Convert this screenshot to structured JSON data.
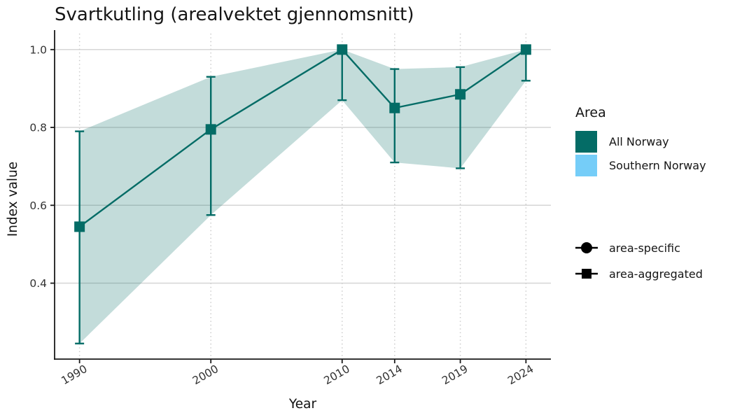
{
  "chart_data": {
    "type": "line",
    "title": "Svartkutling (arealvektet gjennomsnitt)",
    "xlabel": "Year",
    "ylabel": "Index value",
    "x": [
      1990,
      2000,
      2010,
      2014,
      2019,
      2024
    ],
    "xtick_labels": [
      "1990",
      "2000",
      "2010",
      "2014",
      "2019",
      "2024"
    ],
    "yticks": [
      0.4,
      0.6,
      0.8,
      1.0
    ],
    "ytick_labels": [
      "0.4",
      "0.6",
      "0.8",
      "1.0"
    ],
    "xlim": [
      1988.1,
      2025.9
    ],
    "ylim": [
      0.205,
      1.041
    ],
    "grid": {
      "horizontal": "solid",
      "vertical": "dotted"
    },
    "legend_position": "right",
    "series": [
      {
        "name": "All Norway",
        "marker": "square",
        "color": "#046C66",
        "ribbon_opacity": 0.24,
        "values": [
          0.545,
          0.795,
          1.0,
          0.85,
          0.885,
          1.0
        ],
        "lower": [
          0.245,
          0.575,
          0.87,
          0.71,
          0.695,
          0.92
        ],
        "upper": [
          0.79,
          0.93,
          1.0,
          0.95,
          0.955,
          1.0
        ]
      }
    ]
  },
  "legend": {
    "area_title": "Area",
    "areas": [
      {
        "label": "All Norway",
        "color": "#046C66"
      },
      {
        "label": "Southern Norway",
        "color": "#75CDF8"
      }
    ],
    "shapes": [
      {
        "label": "area-specific",
        "shape": "circle"
      },
      {
        "label": "area-aggregated",
        "shape": "square"
      }
    ]
  }
}
